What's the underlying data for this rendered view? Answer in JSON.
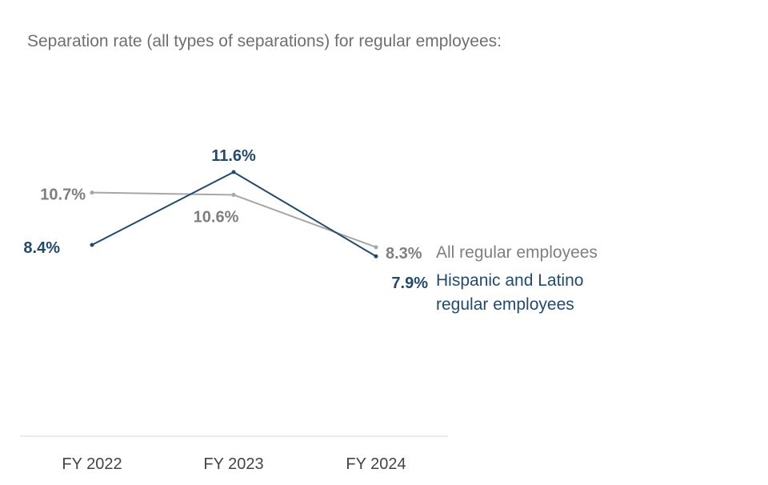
{
  "chart_data": {
    "type": "line",
    "title": "Separation rate (all types of separations) for regular employees:",
    "categories": [
      "FY 2022",
      "FY 2023",
      "FY 2024"
    ],
    "xlabel": "",
    "ylabel": "",
    "ylim": [
      7,
      12.5
    ],
    "grid": false,
    "series": [
      {
        "name": "All regular employees",
        "values": [
          10.7,
          10.6,
          8.3
        ],
        "labels": [
          "10.7%",
          "10.6%",
          "8.3%"
        ],
        "color": "#a6a6a6",
        "label_color": "#7f7f7f"
      },
      {
        "name": "Hispanic and Latino regular employees",
        "name_lines": [
          "Hispanic and Latino",
          "regular employees"
        ],
        "values": [
          8.4,
          11.6,
          7.9
        ],
        "labels": [
          "8.4%",
          "11.6%",
          "7.9%"
        ],
        "color": "#244a6b",
        "label_color": "#244a6b"
      }
    ]
  }
}
